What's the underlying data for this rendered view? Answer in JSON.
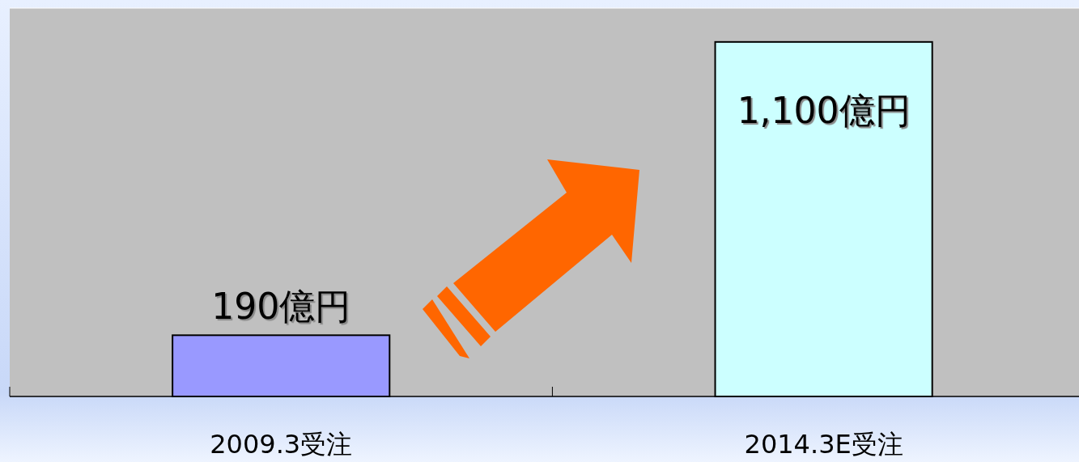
{
  "chart_data": {
    "type": "bar",
    "categories": [
      "2009.3受注",
      "2014.3E受注"
    ],
    "values": [
      190,
      1100
    ],
    "colors": [
      "#9999ff",
      "#ccffff"
    ],
    "value_labels": [
      "190億円",
      "1,100億円"
    ],
    "ylim": [
      0,
      1205
    ],
    "tick_labels": "x"
  }
}
